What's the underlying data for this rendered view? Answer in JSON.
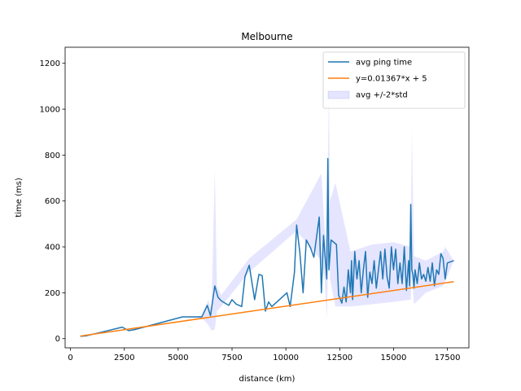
{
  "chart_data": {
    "type": "line",
    "title": "Melbourne",
    "xlabel": "distance (km)",
    "ylabel": "time (ms)",
    "xlim": [
      -250,
      18500
    ],
    "ylim": [
      -40,
      1270
    ],
    "xticks": [
      0,
      2500,
      5000,
      7500,
      10000,
      12500,
      15000,
      17500
    ],
    "yticks": [
      0,
      200,
      400,
      600,
      800,
      1000,
      1200
    ],
    "legend_position": "top-right",
    "grid": false,
    "series": [
      {
        "name": "avg ping time",
        "color": "#1f77b4",
        "style": "line",
        "x": [
          450,
          700,
          1300,
          2400,
          2700,
          3000,
          5200,
          6100,
          6350,
          6500,
          6700,
          6850,
          7000,
          7350,
          7500,
          7700,
          7950,
          8100,
          8300,
          8550,
          8750,
          8900,
          9050,
          9200,
          9350,
          10050,
          10200,
          10400,
          10500,
          10650,
          10800,
          10950,
          11150,
          11300,
          11550,
          11650,
          11750,
          11900,
          11950,
          12000,
          12100,
          12350,
          12450,
          12600,
          12700,
          12800,
          12900,
          13000,
          13050,
          13100,
          13200,
          13300,
          13400,
          13500,
          13600,
          13700,
          13800,
          13900,
          14000,
          14100,
          14200,
          14300,
          14400,
          14500,
          14600,
          14700,
          14800,
          14900,
          15000,
          15100,
          15200,
          15300,
          15400,
          15500,
          15600,
          15700,
          15750,
          15800,
          15850,
          15900,
          15950,
          16000,
          16100,
          16200,
          16300,
          16400,
          16500,
          16600,
          16700,
          16800,
          16900,
          17000,
          17100,
          17200,
          17300,
          17400,
          17500,
          17800
        ],
        "y": [
          10,
          12,
          25,
          50,
          35,
          40,
          95,
          95,
          145,
          100,
          230,
          180,
          165,
          145,
          170,
          150,
          140,
          270,
          320,
          170,
          280,
          275,
          120,
          160,
          140,
          200,
          140,
          290,
          495,
          375,
          200,
          430,
          395,
          355,
          530,
          200,
          450,
          260,
          785,
          300,
          430,
          410,
          190,
          155,
          225,
          160,
          300,
          200,
          340,
          170,
          380,
          260,
          340,
          200,
          300,
          380,
          180,
          290,
          240,
          340,
          220,
          300,
          380,
          260,
          390,
          270,
          220,
          400,
          300,
          390,
          240,
          330,
          240,
          400,
          210,
          340,
          230,
          585,
          300,
          280,
          220,
          300,
          240,
          330,
          260,
          280,
          250,
          310,
          250,
          330,
          230,
          300,
          280,
          370,
          350,
          260,
          330,
          340
        ]
      },
      {
        "name": "y=0.01367*x + 5",
        "color": "#ff7f0e",
        "style": "line",
        "x": [
          450,
          17800
        ],
        "y": [
          11.15,
          248.33
        ]
      },
      {
        "name": "avg +/-2*std",
        "color": "#0000ff",
        "style": "band",
        "x": [
          450,
          2400,
          5200,
          6100,
          6400,
          6550,
          6700,
          6800,
          7000,
          8300,
          10500,
          11650,
          11800,
          11900,
          12000,
          12050,
          12300,
          13000,
          14000,
          15000,
          15800,
          15850,
          15950,
          16500,
          17300,
          17400,
          17800
        ],
        "upper": [
          10,
          50,
          95,
          100,
          170,
          120,
          740,
          230,
          190,
          350,
          520,
          720,
          480,
          420,
          1080,
          600,
          680,
          380,
          410,
          420,
          400,
          920,
          360,
          340,
          380,
          400,
          340
        ],
        "lower": [
          10,
          50,
          95,
          90,
          60,
          35,
          40,
          120,
          140,
          290,
          470,
          340,
          260,
          90,
          480,
          260,
          140,
          140,
          150,
          160,
          170,
          270,
          150,
          200,
          230,
          250,
          340
        ]
      }
    ]
  }
}
